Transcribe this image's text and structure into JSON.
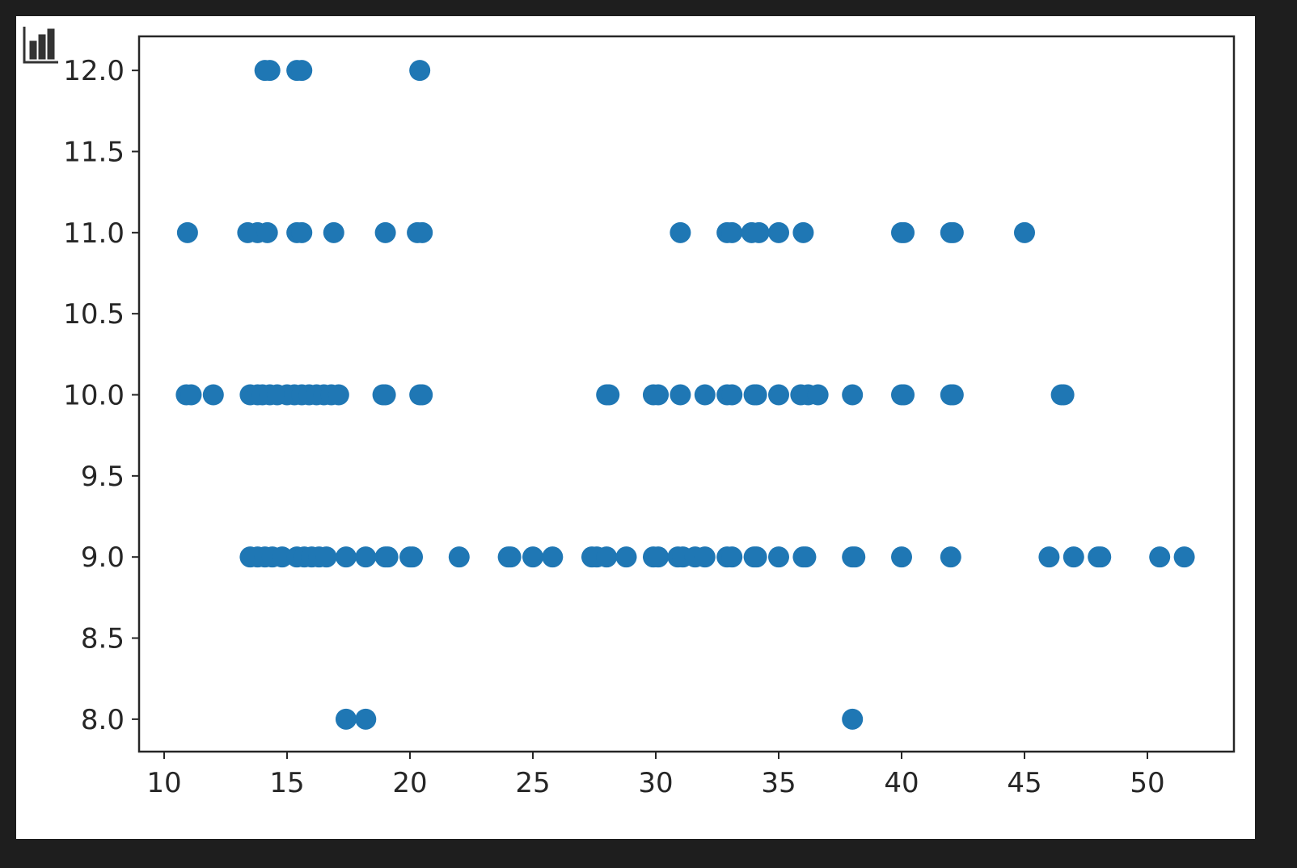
{
  "chart_data": {
    "type": "scatter",
    "title": "",
    "xlabel": "",
    "ylabel": "",
    "xlim": [
      8.98,
      53.52
    ],
    "ylim": [
      7.8,
      12.21
    ],
    "xticks": [
      "10",
      "15",
      "20",
      "25",
      "30",
      "35",
      "40",
      "45",
      "50"
    ],
    "yticks": [
      "8.0",
      "8.5",
      "9.0",
      "9.5",
      "10.0",
      "10.5",
      "11.0",
      "11.5",
      "12.0"
    ],
    "grid": false,
    "marker_color": "#1f77b4",
    "series": [
      {
        "points": [
          [
            14.1,
            12
          ],
          [
            14.3,
            12
          ],
          [
            15.4,
            12
          ],
          [
            15.6,
            12
          ],
          [
            20.4,
            12
          ],
          [
            10.95,
            11
          ],
          [
            13.4,
            11
          ],
          [
            13.8,
            11
          ],
          [
            14.2,
            11
          ],
          [
            15.4,
            11
          ],
          [
            15.6,
            11
          ],
          [
            16.9,
            11
          ],
          [
            19,
            11
          ],
          [
            20.3,
            11
          ],
          [
            20.5,
            11
          ],
          [
            31,
            11
          ],
          [
            32.9,
            11
          ],
          [
            33.1,
            11
          ],
          [
            33.9,
            11
          ],
          [
            34.2,
            11
          ],
          [
            35,
            11
          ],
          [
            36,
            11
          ],
          [
            40,
            11
          ],
          [
            40.1,
            11
          ],
          [
            42,
            11
          ],
          [
            42.1,
            11
          ],
          [
            45,
            11
          ],
          [
            10.9,
            10
          ],
          [
            11.1,
            10
          ],
          [
            12,
            10
          ],
          [
            13.5,
            10
          ],
          [
            13.8,
            10
          ],
          [
            14,
            10
          ],
          [
            14.3,
            10
          ],
          [
            14.6,
            10
          ],
          [
            15,
            10
          ],
          [
            15.3,
            10
          ],
          [
            15.6,
            10
          ],
          [
            15.9,
            10
          ],
          [
            16.2,
            10
          ],
          [
            16.5,
            10
          ],
          [
            16.8,
            10
          ],
          [
            17.1,
            10
          ],
          [
            18.9,
            10
          ],
          [
            19,
            10
          ],
          [
            20.4,
            10
          ],
          [
            20.5,
            10
          ],
          [
            28,
            10
          ],
          [
            28.1,
            10
          ],
          [
            29.9,
            10
          ],
          [
            30.1,
            10
          ],
          [
            31,
            10
          ],
          [
            32,
            10
          ],
          [
            32.9,
            10
          ],
          [
            33.1,
            10
          ],
          [
            34,
            10
          ],
          [
            34.1,
            10
          ],
          [
            35,
            10
          ],
          [
            35.9,
            10
          ],
          [
            36.2,
            10
          ],
          [
            36.6,
            10
          ],
          [
            38,
            10
          ],
          [
            40,
            10
          ],
          [
            40.1,
            10
          ],
          [
            42,
            10
          ],
          [
            42.1,
            10
          ],
          [
            46.5,
            10
          ],
          [
            46.6,
            10
          ],
          [
            13.5,
            9
          ],
          [
            13.8,
            9
          ],
          [
            14.1,
            9
          ],
          [
            14.4,
            9
          ],
          [
            14.8,
            9
          ],
          [
            15.4,
            9
          ],
          [
            15.7,
            9
          ],
          [
            16,
            9
          ],
          [
            16.3,
            9
          ],
          [
            16.6,
            9
          ],
          [
            17.4,
            9
          ],
          [
            18.2,
            9
          ],
          [
            19,
            9
          ],
          [
            19.1,
            9
          ],
          [
            20,
            9
          ],
          [
            20.1,
            9
          ],
          [
            22,
            9
          ],
          [
            24,
            9
          ],
          [
            24.1,
            9
          ],
          [
            25,
            9
          ],
          [
            25.8,
            9
          ],
          [
            27.4,
            9
          ],
          [
            27.6,
            9
          ],
          [
            28,
            9
          ],
          [
            28.8,
            9
          ],
          [
            29.9,
            9
          ],
          [
            30.1,
            9
          ],
          [
            30.9,
            9
          ],
          [
            31.1,
            9
          ],
          [
            31.6,
            9
          ],
          [
            32,
            9
          ],
          [
            32.9,
            9
          ],
          [
            33.1,
            9
          ],
          [
            34,
            9
          ],
          [
            34.1,
            9
          ],
          [
            35,
            9
          ],
          [
            36,
            9
          ],
          [
            36.1,
            9
          ],
          [
            38,
            9
          ],
          [
            38.1,
            9
          ],
          [
            40,
            9
          ],
          [
            42,
            9
          ],
          [
            46,
            9
          ],
          [
            47,
            9
          ],
          [
            48,
            9
          ],
          [
            48.1,
            9
          ],
          [
            50.5,
            9
          ],
          [
            51.5,
            9
          ],
          [
            17.4,
            8
          ],
          [
            18.2,
            8
          ],
          [
            38,
            8
          ]
        ]
      }
    ]
  },
  "toolbar": {
    "icon": "bar-chart-icon"
  }
}
